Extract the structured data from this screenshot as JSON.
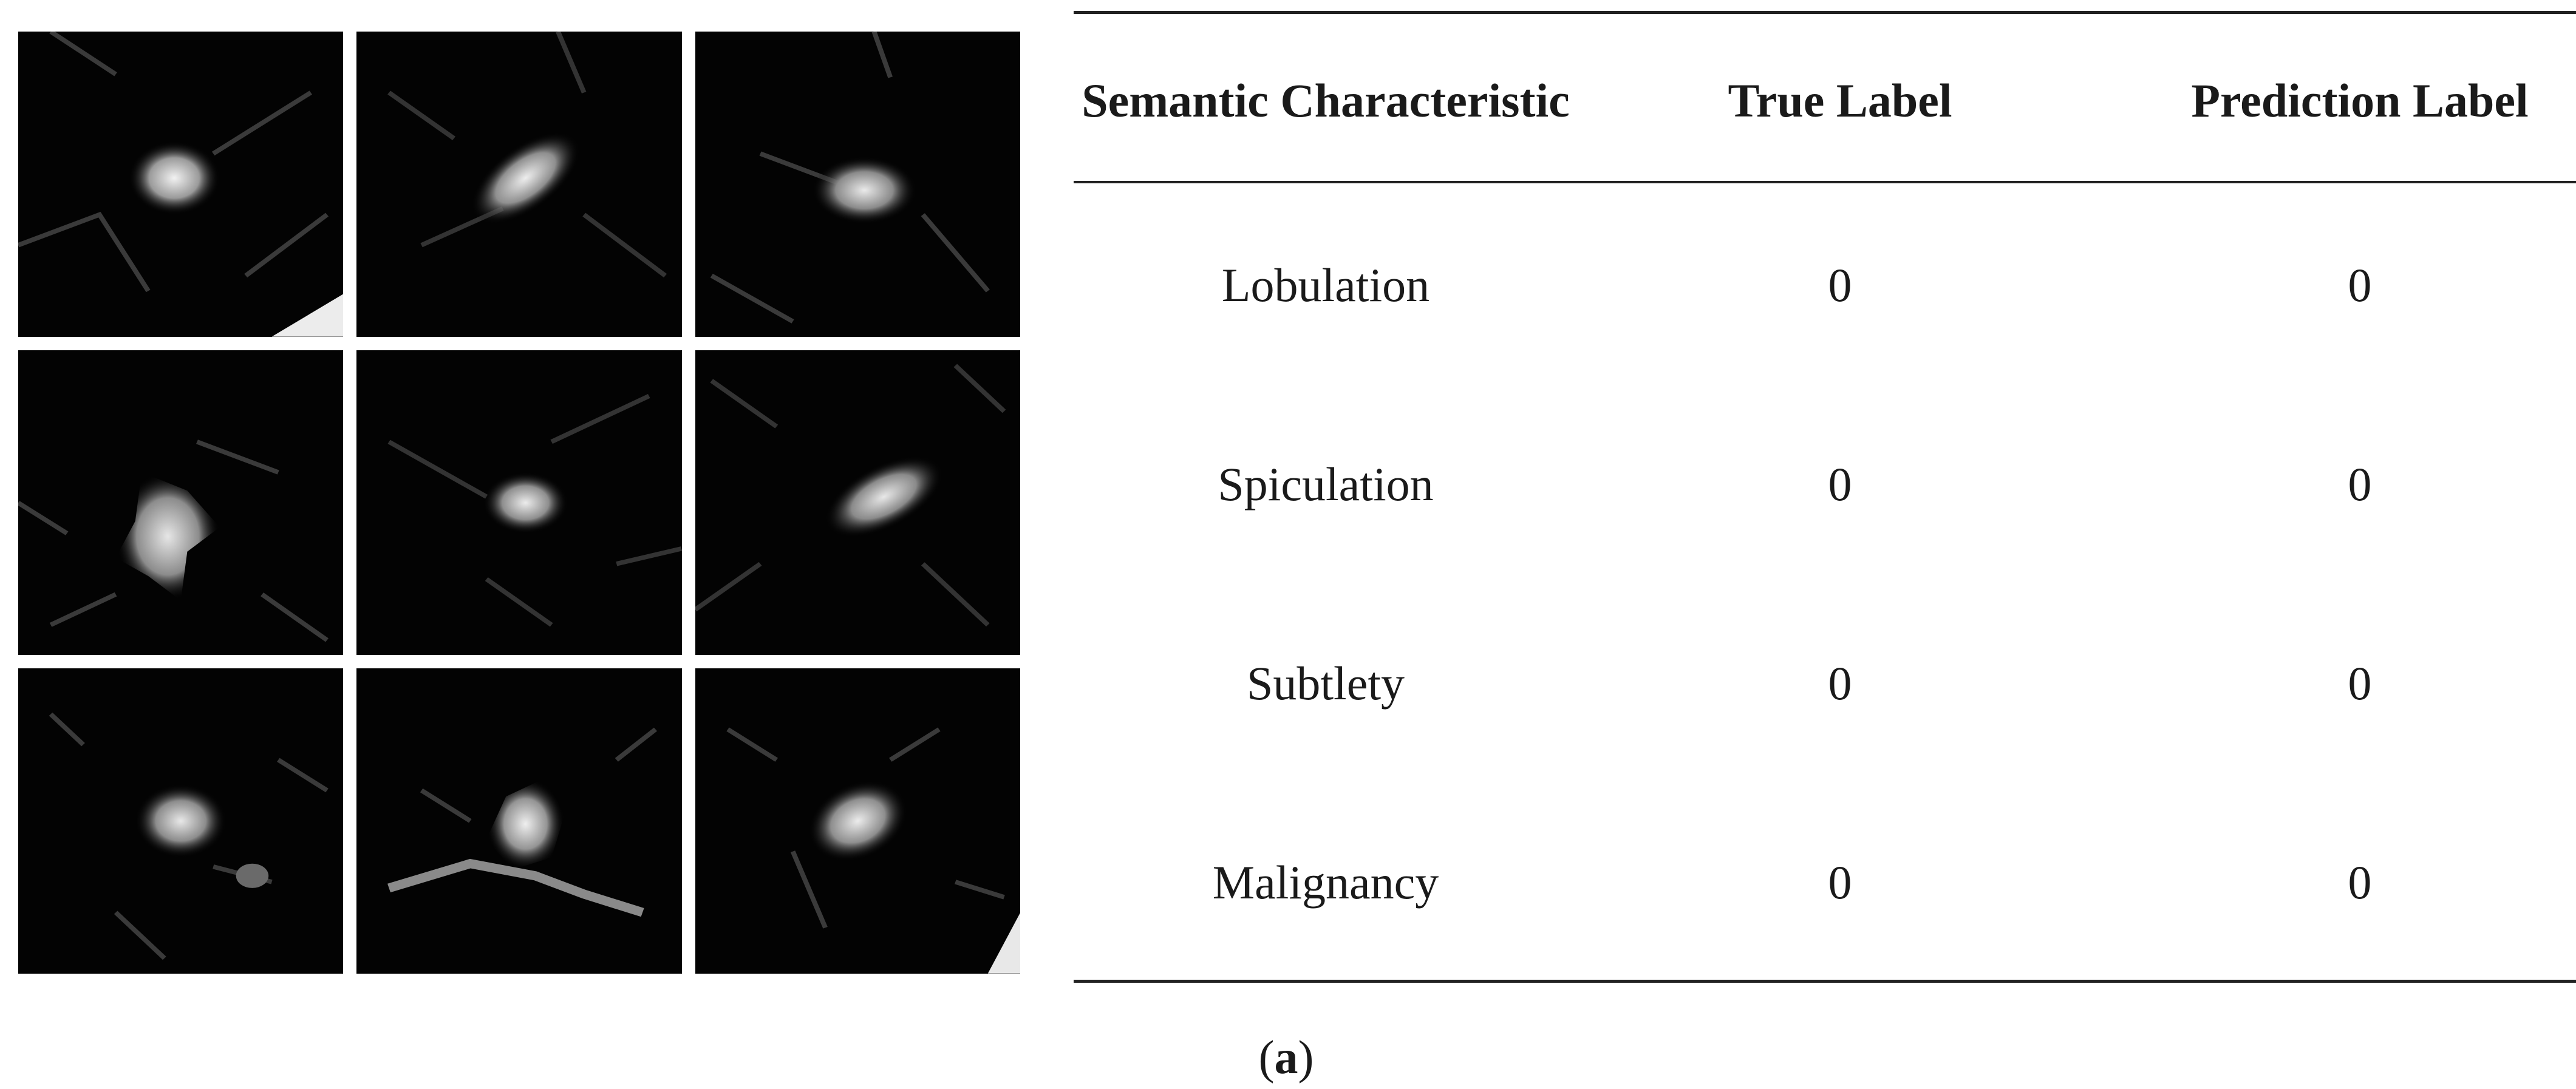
{
  "figure": {
    "tiles": [
      {
        "name": "ct-nodule-tile-1"
      },
      {
        "name": "ct-nodule-tile-2"
      },
      {
        "name": "ct-nodule-tile-3"
      },
      {
        "name": "ct-nodule-tile-4"
      },
      {
        "name": "ct-nodule-tile-5"
      },
      {
        "name": "ct-nodule-tile-6"
      },
      {
        "name": "ct-nodule-tile-7"
      },
      {
        "name": "ct-nodule-tile-8"
      },
      {
        "name": "ct-nodule-tile-9"
      }
    ]
  },
  "table": {
    "headers": [
      "Semantic Characteristic",
      "True Label",
      "Prediction Label"
    ],
    "rows": [
      {
        "characteristic": "Lobulation",
        "true_label": "0",
        "prediction_label": "0"
      },
      {
        "characteristic": "Spiculation",
        "true_label": "0",
        "prediction_label": "0"
      },
      {
        "characteristic": "Subtlety",
        "true_label": "0",
        "prediction_label": "0"
      },
      {
        "characteristic": "Malignancy",
        "true_label": "0",
        "prediction_label": "0"
      }
    ]
  },
  "caption": {
    "open": "(",
    "letter": "a",
    "close": ")"
  }
}
